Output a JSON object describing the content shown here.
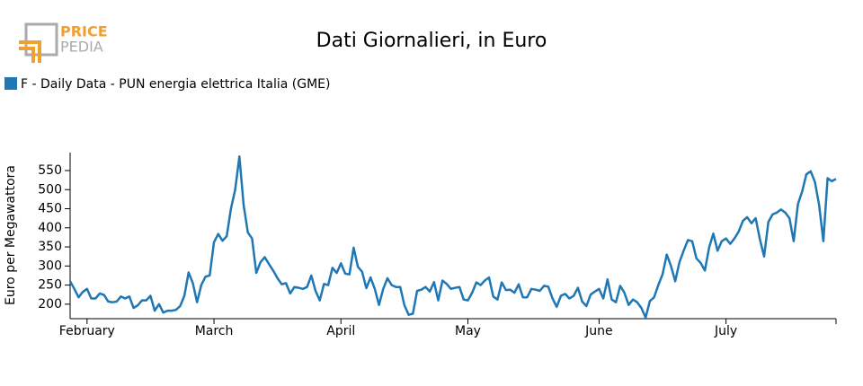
{
  "logo": {
    "line1": "PRICE",
    "line2": "PEDIA"
  },
  "chart_data": {
    "type": "line",
    "title": "Dati Giornalieri, in Euro",
    "y_label": "Euro per Megawattora",
    "categories": [
      null,
      null,
      null,
      null,
      "February",
      null,
      null,
      null,
      null,
      null,
      null,
      null,
      null,
      null,
      null,
      null,
      null,
      null,
      null,
      null,
      null,
      null,
      null,
      null,
      null,
      null,
      null,
      null,
      null,
      null,
      null,
      null,
      null,
      null,
      "March",
      null,
      null,
      null,
      null,
      null,
      null,
      null,
      null,
      null,
      null,
      null,
      null,
      null,
      null,
      null,
      null,
      null,
      null,
      null,
      null,
      null,
      null,
      null,
      null,
      null,
      null,
      null,
      null,
      null,
      "April",
      null,
      null,
      null,
      null,
      null,
      null,
      null,
      null,
      null,
      null,
      null,
      null,
      null,
      null,
      null,
      null,
      null,
      null,
      null,
      null,
      null,
      null,
      null,
      null,
      null,
      null,
      null,
      null,
      null,
      "May",
      null,
      null,
      null,
      null,
      null,
      null,
      null,
      null,
      null,
      null,
      null,
      null,
      null,
      null,
      null,
      null,
      null,
      null,
      null,
      null,
      null,
      null,
      null,
      null,
      null,
      null,
      null,
      null,
      null,
      null,
      "June",
      null,
      null,
      null,
      null,
      null,
      null,
      null,
      null,
      null,
      null,
      null,
      null,
      null,
      null,
      null,
      null,
      null,
      null,
      null,
      null,
      null,
      null,
      null,
      null,
      null,
      null,
      null,
      null,
      null,
      "July",
      null,
      null,
      null,
      null,
      null,
      null,
      null,
      null,
      null,
      null,
      null,
      null,
      null,
      null,
      null,
      null,
      null,
      null,
      null,
      null,
      null,
      null,
      null,
      null,
      null,
      null
    ],
    "series": [
      {
        "name": "F - Daily Data - PUN energia elettrica Italia (GME)",
        "color": "#1f77b4",
        "values": [
          260,
          240,
          218,
          232,
          240,
          215,
          215,
          228,
          224,
          207,
          205,
          207,
          220,
          215,
          220,
          190,
          197,
          210,
          210,
          222,
          183,
          200,
          178,
          183,
          183,
          185,
          195,
          222,
          283,
          255,
          205,
          250,
          272,
          275,
          362,
          384,
          366,
          378,
          450,
          500,
          587,
          460,
          388,
          372,
          282,
          310,
          323,
          305,
          288,
          268,
          252,
          255,
          228,
          245,
          243,
          240,
          245,
          275,
          235,
          210,
          253,
          250,
          295,
          282,
          307,
          280,
          278,
          348,
          298,
          285,
          242,
          270,
          240,
          198,
          240,
          268,
          250,
          245,
          245,
          197,
          172,
          175,
          235,
          238,
          245,
          233,
          258,
          210,
          262,
          253,
          240,
          243,
          245,
          212,
          210,
          230,
          257,
          250,
          262,
          270,
          220,
          212,
          257,
          237,
          238,
          230,
          252,
          218,
          218,
          240,
          238,
          235,
          248,
          246,
          215,
          193,
          222,
          227,
          215,
          222,
          243,
          207,
          195,
          225,
          233,
          240,
          215,
          265,
          212,
          205,
          248,
          230,
          198,
          212,
          205,
          190,
          165,
          208,
          218,
          250,
          278,
          330,
          300,
          260,
          310,
          340,
          368,
          365,
          320,
          308,
          288,
          348,
          385,
          340,
          365,
          372,
          358,
          372,
          390,
          418,
          428,
          412,
          425,
          370,
          325,
          415,
          435,
          440,
          448,
          440,
          425,
          365,
          462,
          495,
          540,
          548,
          520,
          460,
          365,
          530,
          522,
          528
        ]
      }
    ],
    "ylim": [
      162,
      597
    ],
    "yticks": [
      200,
      250,
      300,
      350,
      400,
      450,
      500,
      550
    ],
    "grid": false
  }
}
